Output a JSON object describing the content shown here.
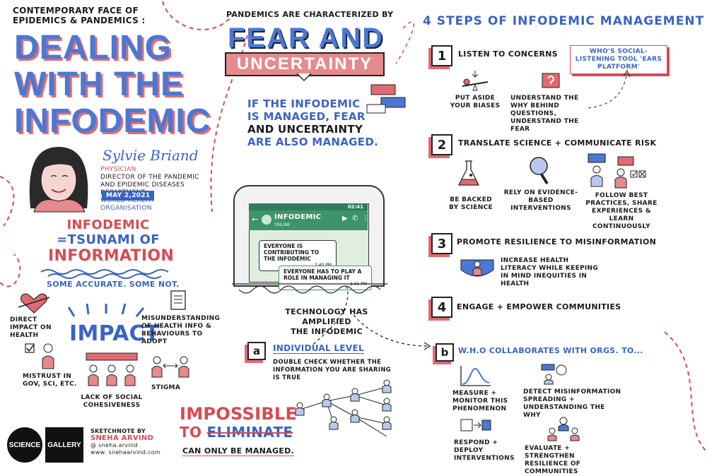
{
  "header": {
    "subtitle_line1": "CONTEMPORARY FACE OF",
    "subtitle_line2": "EPIDEMICS & PANDEMICS :",
    "title_line1": "DEALING",
    "title_line2": "WITH THE",
    "title_line3": "INFODEMIC"
  },
  "speaker": {
    "name": "Sylvie Briand",
    "role": "PHYSICIAN",
    "position1": "DIRECTOR OF THE PANDEMIC",
    "position2": "AND EPIDEMIC DISEASES DEPARTMENT",
    "org": "WORLD HEALTH ORGANISATION",
    "date": "MAY 2,2021"
  },
  "infodemic_def": {
    "line1": "INFODEMIC",
    "line2": "=TSUNAMI OF",
    "line3": "INFORMATION",
    "line4": "SOME ACCURATE. SOME NOT."
  },
  "impact": {
    "label": "IMPACT",
    "direct": "DIRECT IMPACT ON HEALTH",
    "misunderstanding": "MISUNDERSTANDING OF HEALTH INFO & BEHAVIOURS TO ADOPT",
    "mistrust": "MISTRUST IN GOV, SCI, ETC.",
    "cohesiveness": "LACK OF SOCIAL COHESIVENESS",
    "stigma": "STIGMA"
  },
  "footer": {
    "logo_left": "SCIENCE",
    "logo_right": "GALLERY",
    "sketch_by": "SKETCHNOTE BY",
    "artist": "SNEHA ARVIND",
    "handle": "@ sneha.arvind",
    "site": "www. snehaarvind.com"
  },
  "center": {
    "top_caption": "PANDEMICS ARE CHARACTERIZED BY",
    "fear": "FEAR AND",
    "uncertainty": "UNCERTAINTY",
    "managed_line1": "IF THE INFODEMIC",
    "managed_line2": "IS MANAGED, FEAR",
    "managed_line3": "AND UNCERTAINTY",
    "managed_line4": "ARE ALSO MANAGED.",
    "tech_line1": "TECHNOLOGY HAS AMPLIFIED",
    "tech_line2": "THE INFODEMIC"
  },
  "phone": {
    "time": "02:41",
    "chat_title": "INFODEMIC",
    "chat_status": "ONLINE",
    "msg1": "EVERYONE IS CONTRIBUTING TO THE INFODEMIC",
    "msg1_time": "2:40 PM",
    "msg2": "EVERYONE HAS TO PLAY A ROLE IN MANAGING IT",
    "msg2_time": "2:41 PM"
  },
  "individual": {
    "letter": "a",
    "title": "INDIVIDUAL LEVEL",
    "text": "DOUBLE CHECK WHETHER THE INFORMATION YOU ARE SHARING IS TRUE"
  },
  "impossible": {
    "line1": "IMPOSSIBLE",
    "line2_to": "TO",
    "line2_eliminate": "ELIMINATE",
    "line3": "CAN ONLY BE MANAGED."
  },
  "steps": {
    "title": "4 STEPS OF INFODEMIC MANAGEMENT",
    "s1_num": "1",
    "s1_title": "LISTEN TO CONCERNS",
    "s1_tool": "WHO'S SOCIAL-LISTENING TOOL 'EARS PLATFORM'",
    "s1_biases": "PUT ASIDE YOUR BIASES",
    "s1_why": "UNDERSTAND THE WHY BEHIND QUESTIONS, UNDERSTAND THE FEAR",
    "s2_num": "2",
    "s2_title": "TRANSLATE SCIENCE + COMMUNICATE RISK",
    "s2_a": "BE BACKED BY SCIENCE",
    "s2_b": "RELY ON EVIDENCE-BASED INTERVENTIONS",
    "s2_c": "FOLLOW BEST PRACTICES, SHARE EXPERIENCES & LEARN CONTINUOUSLY",
    "s3_num": "3",
    "s3_title": "PROMOTE RESILIENCE TO MISINFORMATION",
    "s3_text": "INCREASE HEALTH LITERACY WHILE KEEPING IN MIND INEQUITIES IN HEALTH",
    "s4_num": "4",
    "s4_title": "ENGAGE + EMPOWER COMMUNITIES"
  },
  "who": {
    "letter": "b",
    "title": "W.H.O COLLABORATES WITH ORGS. TO...",
    "measure": "MEASURE + MONITOR THIS PHENOMENON",
    "detect": "DETECT MISINFORMATION SPREADING + UNDERSTANDING THE WHY",
    "respond": "RESPOND + DEPLOY INTERVENTIONS",
    "evaluate": "EVALUATE + STRENGTHEN RESILIENCE OF COMMUNITIES"
  },
  "colors": {
    "blue": "#3a63c6",
    "red": "#d94a52",
    "green": "#2f7d5a"
  }
}
